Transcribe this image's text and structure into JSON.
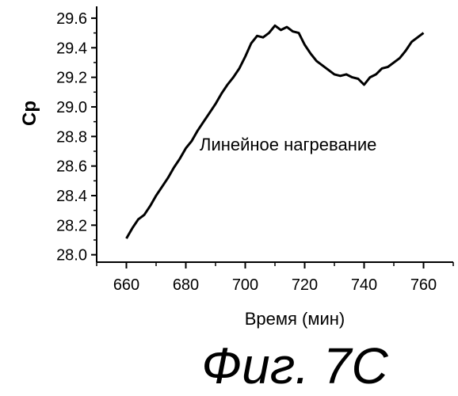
{
  "chart_data": {
    "type": "line",
    "xlabel": "Время (мин)",
    "ylabel": "Cp",
    "annotation": "Линейное нагревание",
    "caption": "Фиг. 7С",
    "xlim": [
      650,
      770
    ],
    "ylim": [
      27.95,
      29.68
    ],
    "x_ticks": [
      660,
      680,
      700,
      720,
      740,
      760
    ],
    "y_ticks": [
      28.0,
      28.2,
      28.4,
      28.6,
      28.8,
      29.0,
      29.2,
      29.4,
      29.6
    ],
    "grid": false,
    "series": [
      {
        "x": [
          660,
          662,
          664,
          666,
          668,
          670,
          672,
          674,
          676,
          678,
          680,
          682,
          684,
          686,
          688,
          690,
          692,
          694,
          696,
          698,
          700,
          702,
          704,
          706,
          708,
          710,
          712,
          714,
          716,
          718,
          720,
          722,
          724,
          726,
          728,
          730,
          732,
          734,
          736,
          738,
          740,
          742,
          744,
          746,
          748,
          750,
          752,
          754,
          756,
          758,
          760
        ],
        "y": [
          28.11,
          28.18,
          28.24,
          28.27,
          28.33,
          28.4,
          28.46,
          28.52,
          28.59,
          28.65,
          28.72,
          28.77,
          28.84,
          28.9,
          28.96,
          29.02,
          29.09,
          29.15,
          29.2,
          29.26,
          29.34,
          29.43,
          29.48,
          29.47,
          29.5,
          29.55,
          29.52,
          29.54,
          29.51,
          29.5,
          29.42,
          29.36,
          29.31,
          29.28,
          29.25,
          29.22,
          29.21,
          29.22,
          29.2,
          29.19,
          29.15,
          29.2,
          29.22,
          29.26,
          29.27,
          29.3,
          29.33,
          29.38,
          29.44,
          29.47,
          29.5
        ]
      }
    ]
  }
}
